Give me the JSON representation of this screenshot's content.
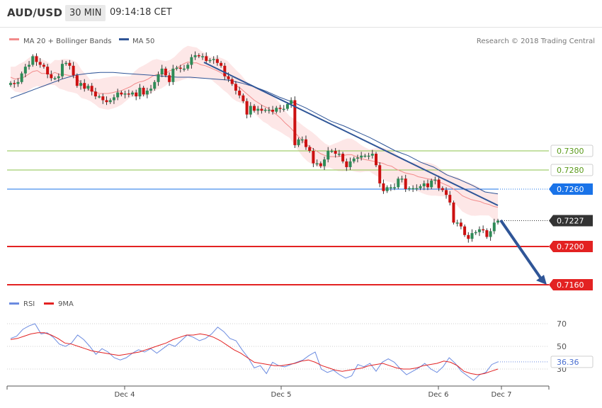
{
  "header": {
    "symbol": "AUD/USD",
    "timeframe": "30 MIN",
    "time": "09:14:18 CET"
  },
  "legend": {
    "ma20_label": "MA 20 + Bollinger Bands",
    "ma50_label": "MA 50",
    "ma20_color": "#f28b8b",
    "ma50_color": "#2f5597"
  },
  "copyright": "Research © 2018 Trading Central",
  "colors": {
    "up": "#2e8b57",
    "down": "#cc1111",
    "band": "#fde3e3",
    "trendline": "#2f5597",
    "support": "#e32222",
    "resistance": "#8bc34a",
    "current": "#1a73e8",
    "price_tag": "#333333",
    "rsi": "#6b8be0",
    "rsi_ma": "#e32222"
  },
  "chart_data": {
    "type": "candlestick",
    "symbol": "AUD/USD",
    "interval": "30 MIN",
    "x_ticks": [
      "Dec 4",
      "Dec 5",
      "Dec 6",
      "Dec 7"
    ],
    "price_axis": {
      "current": 0.7227
    },
    "levels": [
      {
        "value": 0.73,
        "label": "0.7300",
        "kind": "resistance"
      },
      {
        "value": 0.728,
        "label": "0.7280",
        "kind": "resistance"
      },
      {
        "value": 0.726,
        "label": "0.7260",
        "kind": "current-area"
      },
      {
        "value": 0.7227,
        "label": "0.7227",
        "kind": "last-price"
      },
      {
        "value": 0.72,
        "label": "0.7200",
        "kind": "support"
      },
      {
        "value": 0.716,
        "label": "0.7160",
        "kind": "support"
      }
    ],
    "forecast": "down",
    "close": [
      0.7371,
      0.737,
      0.7372,
      0.7381,
      0.7388,
      0.739,
      0.7399,
      0.7393,
      0.739,
      0.7388,
      0.738,
      0.7376,
      0.7376,
      0.7378,
      0.7391,
      0.7392,
      0.7389,
      0.7379,
      0.7368,
      0.7371,
      0.7365,
      0.7368,
      0.7362,
      0.7357,
      0.7357,
      0.7353,
      0.7351,
      0.7353,
      0.7356,
      0.7361,
      0.7359,
      0.736,
      0.7359,
      0.7361,
      0.7357,
      0.7366,
      0.7359,
      0.7363,
      0.7365,
      0.7372,
      0.738,
      0.7386,
      0.7379,
      0.7372,
      0.7386,
      0.7387,
      0.7386,
      0.7386,
      0.739,
      0.7398,
      0.74,
      0.7399,
      0.7399,
      0.7394,
      0.7395,
      0.7396,
      0.7392,
      0.7389,
      0.7378,
      0.7375,
      0.737,
      0.7363,
      0.7358,
      0.7352,
      0.7338,
      0.7347,
      0.7342,
      0.7344,
      0.7342,
      0.7343,
      0.7343,
      0.7341,
      0.7345,
      0.7344,
      0.7344,
      0.7349,
      0.7353,
      0.7306,
      0.7312,
      0.7312,
      0.7304,
      0.73,
      0.7287,
      0.7287,
      0.7284,
      0.7291,
      0.73,
      0.73,
      0.7297,
      0.7297,
      0.7289,
      0.7283,
      0.7289,
      0.7292,
      0.7293,
      0.7295,
      0.7295,
      0.7295,
      0.7297,
      0.7285,
      0.7266,
      0.7258,
      0.7262,
      0.7262,
      0.7262,
      0.7271,
      0.7271,
      0.726,
      0.7261,
      0.7261,
      0.7261,
      0.7263,
      0.7266,
      0.7262,
      0.7269,
      0.727,
      0.7261,
      0.7259,
      0.7254,
      0.7246,
      0.7225,
      0.7225,
      0.7221,
      0.7212,
      0.7208,
      0.7214,
      0.7215,
      0.7218,
      0.7217,
      0.721,
      0.7216,
      0.7225,
      0.7227
    ],
    "ma20": [
      0.7377,
      0.7375,
      0.7376,
      0.7377,
      0.738,
      0.7383,
      0.7384,
      0.7381,
      0.7381,
      0.738,
      0.7382,
      0.738,
      0.738,
      0.7379,
      0.7378,
      0.7376,
      0.737,
      0.7367,
      0.7363,
      0.7362,
      0.736,
      0.736,
      0.736,
      0.7361,
      0.7362,
      0.7363,
      0.7365,
      0.7367,
      0.737,
      0.7372,
      0.7373,
      0.7375,
      0.7378,
      0.738,
      0.738,
      0.7381,
      0.7384,
      0.7385,
      0.7388,
      0.7391,
      0.7393,
      0.7392,
      0.7392,
      0.739,
      0.7389,
      0.7387,
      0.7385,
      0.7383,
      0.738,
      0.7377,
      0.7372,
      0.7368,
      0.7365,
      0.7361,
      0.7357,
      0.7353,
      0.735,
      0.7347,
      0.7345,
      0.7341,
      0.7338,
      0.7334,
      0.7329,
      0.7325,
      0.732,
      0.7315,
      0.731,
      0.7306,
      0.7303,
      0.73,
      0.7297,
      0.7295,
      0.7294,
      0.7294,
      0.7294,
      0.7295,
      0.7296,
      0.7296,
      0.7294,
      0.7292,
      0.7291,
      0.729,
      0.7289,
      0.7288,
      0.7287,
      0.7285,
      0.7284,
      0.7281,
      0.7279,
      0.7277,
      0.7276,
      0.7275,
      0.7273,
      0.7272,
      0.7271,
      0.727,
      0.7269,
      0.7267,
      0.7265,
      0.7263,
      0.726,
      0.7257,
      0.7253,
      0.7251,
      0.7249,
      0.7248,
      0.7247,
      0.7245,
      0.7244,
      0.7242,
      0.7241
    ],
    "ma50": [
      0.7355,
      0.736,
      0.7365,
      0.737,
      0.7375,
      0.7379,
      0.7381,
      0.7382,
      0.7382,
      0.7381,
      0.738,
      0.7379,
      0.7378,
      0.7377,
      0.7377,
      0.7376,
      0.7375,
      0.7374,
      0.7371,
      0.7367,
      0.7362,
      0.7356,
      0.7351,
      0.7345,
      0.7338,
      0.7331,
      0.7326,
      0.732,
      0.7314,
      0.7307,
      0.73,
      0.7295,
      0.7288,
      0.7283,
      0.7275,
      0.727,
      0.7264,
      0.7257,
      0.7255
    ],
    "rsi": [
      57,
      59,
      65,
      68,
      70,
      61,
      62,
      58,
      52,
      50,
      53,
      60,
      56,
      50,
      43,
      48,
      45,
      40,
      38,
      40,
      44,
      47,
      45,
      48,
      44,
      48,
      52,
      50,
      55,
      60,
      58,
      55,
      57,
      61,
      67,
      63,
      57,
      55,
      47,
      40,
      31,
      33,
      26,
      36,
      33,
      32,
      34,
      36,
      38,
      42,
      45,
      30,
      27,
      29,
      25,
      22,
      24,
      34,
      32,
      35,
      28,
      36,
      39,
      36,
      30,
      25,
      28,
      31,
      35,
      30,
      27,
      32,
      40,
      35,
      28,
      24,
      20,
      25,
      27,
      34,
      36.36
    ],
    "rsi_ma": [
      56,
      57,
      59,
      61,
      62,
      62,
      60,
      57,
      53,
      52,
      50,
      48,
      46,
      45,
      44,
      43,
      42,
      43,
      44,
      45,
      47,
      49,
      51,
      53,
      56,
      58,
      60,
      60,
      61,
      60,
      58,
      55,
      51,
      47,
      44,
      40,
      36,
      35,
      34,
      33,
      33,
      34,
      35,
      37,
      38,
      36,
      33,
      31,
      29,
      28,
      29,
      30,
      31,
      33,
      34,
      35,
      33,
      31,
      30,
      30,
      31,
      33,
      34,
      35,
      37,
      36,
      33,
      28,
      26,
      25,
      26,
      28,
      30
    ],
    "rsi_levels": [
      70,
      50,
      30
    ],
    "rsi_value": 36.36,
    "rsi_labels": [
      "70",
      "50",
      "30"
    ],
    "price_labels": [
      "0.7300",
      "0.7280",
      "0.7260",
      "0.7227",
      "0.7200",
      "0.7160"
    ],
    "legend_lower": [
      {
        "name": "RSI",
        "color": "#6b8be0"
      },
      {
        "name": "9MA",
        "color": "#e32222"
      }
    ]
  }
}
